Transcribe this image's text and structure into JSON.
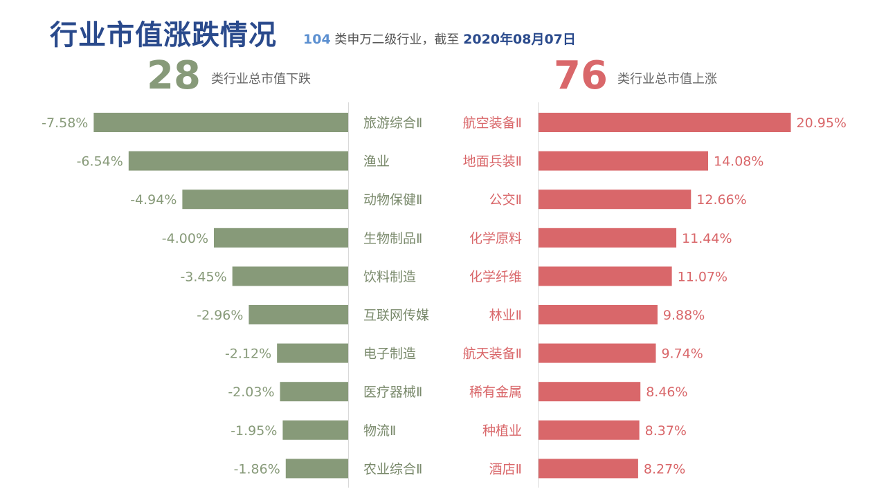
{
  "header": {
    "title": "行业市值涨跌情况",
    "subtitle_count": "104",
    "subtitle_text": " 类申万二级行业，截至 ",
    "subtitle_date": "2020年08月07日"
  },
  "summary": {
    "down_count": "28",
    "down_label": "类行业总市值下跌",
    "up_count": "76",
    "up_label": "类行业总市值上涨"
  },
  "colors": {
    "down": "#879a79",
    "up": "#d9676a",
    "axis": "#d9d9d9"
  },
  "chart_data": [
    {
      "type": "bar",
      "orientation": "horizontal",
      "side": "left",
      "categories": [
        "旅游综合Ⅱ",
        "渔业",
        "动物保健Ⅱ",
        "生物制品Ⅱ",
        "饮料制造",
        "互联网传媒",
        "电子制造",
        "医疗器械Ⅱ",
        "物流Ⅱ",
        "农业综合Ⅱ"
      ],
      "values": [
        -7.58,
        -6.54,
        -4.94,
        -4.0,
        -3.45,
        -2.96,
        -2.12,
        -2.03,
        -1.95,
        -1.86
      ],
      "data_labels": [
        "-7.58%",
        "-6.54%",
        "-4.94%",
        "-4.00%",
        "-3.45%",
        "-2.96%",
        "-2.12%",
        "-2.03%",
        "-1.95%",
        "-1.86%"
      ],
      "unit": "%"
    },
    {
      "type": "bar",
      "orientation": "horizontal",
      "side": "right",
      "categories": [
        "航空装备Ⅱ",
        "地面兵装Ⅱ",
        "公交Ⅱ",
        "化学原料",
        "化学纤维",
        "林业Ⅱ",
        "航天装备Ⅱ",
        "稀有金属",
        "种植业",
        "酒店Ⅱ"
      ],
      "values": [
        20.95,
        14.08,
        12.66,
        11.44,
        11.07,
        9.88,
        9.74,
        8.46,
        8.37,
        8.27
      ],
      "data_labels": [
        "20.95%",
        "14.08%",
        "12.66%",
        "11.44%",
        "11.07%",
        "9.88%",
        "9.74%",
        "8.46%",
        "8.37%",
        "8.27%"
      ],
      "unit": "%"
    }
  ]
}
